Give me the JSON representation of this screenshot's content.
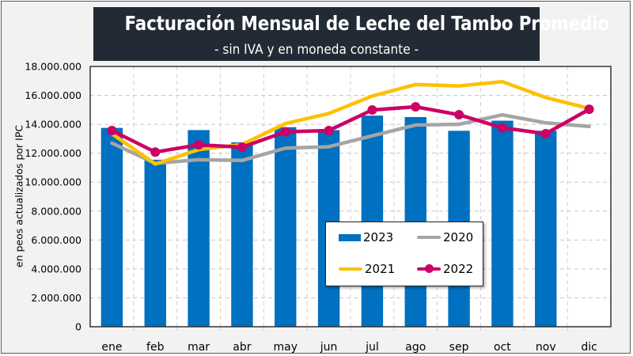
{
  "title": "Facturación Mensual de Leche del Tambo Promedio",
  "subtitle": "- sin IVA y en moneda constante -",
  "colors": {
    "title_bg": "#222a35",
    "2023": "#0070c0",
    "2020": "#a5a5a5",
    "2021": "#ffc000",
    "2022": "#cc0066"
  },
  "chart_data": {
    "type": "bar",
    "title": "Facturación Mensual de Leche del Tambo Promedio",
    "subtitle": "- sin IVA y en moneda constante -",
    "xlabel": "",
    "ylabel": "en peos actualizados por IPC",
    "ylim": [
      0,
      18000000
    ],
    "yticks": [
      0,
      2000000,
      4000000,
      6000000,
      8000000,
      10000000,
      12000000,
      14000000,
      16000000,
      18000000
    ],
    "ytick_labels": [
      "0",
      "2.000.000",
      "4.000.000",
      "6.000.000",
      "8.000.000",
      "10.000.000",
      "12.000.000",
      "14.000.000",
      "16.000.000",
      "18.000.000"
    ],
    "grid": true,
    "legend_position": "center-right inside plot",
    "categories": [
      "ene",
      "feb",
      "mar",
      "abr",
      "may",
      "jun",
      "jul",
      "ago",
      "sep",
      "oct",
      "nov",
      "dic"
    ],
    "series": [
      {
        "name": "2023",
        "type": "bar",
        "color": "#0070c0",
        "values": [
          13750000,
          11550000,
          13600000,
          12750000,
          13800000,
          13600000,
          14600000,
          14500000,
          13550000,
          14250000,
          13550000,
          null
        ]
      },
      {
        "name": "2020",
        "type": "line",
        "color": "#a5a5a5",
        "values": [
          12700000,
          11300000,
          11550000,
          11500000,
          12350000,
          12450000,
          13200000,
          13950000,
          14000000,
          14650000,
          14100000,
          13850000
        ]
      },
      {
        "name": "2021",
        "type": "line",
        "color": "#ffc000",
        "values": [
          13350000,
          11250000,
          12250000,
          12600000,
          14050000,
          14750000,
          15950000,
          16750000,
          16650000,
          16950000,
          15850000,
          15100000
        ]
      },
      {
        "name": "2022",
        "type": "line",
        "marker": "circle",
        "color": "#cc0066",
        "values": [
          13570000,
          12080000,
          12580000,
          12420000,
          13480000,
          13570000,
          14990000,
          15210000,
          14660000,
          13760000,
          13350000,
          15040000
        ]
      }
    ]
  },
  "legend": [
    {
      "label": "2023",
      "kind": "bar"
    },
    {
      "label": "2020",
      "kind": "line"
    },
    {
      "label": "2021",
      "kind": "line"
    },
    {
      "label": "2022",
      "kind": "line-marker"
    }
  ]
}
